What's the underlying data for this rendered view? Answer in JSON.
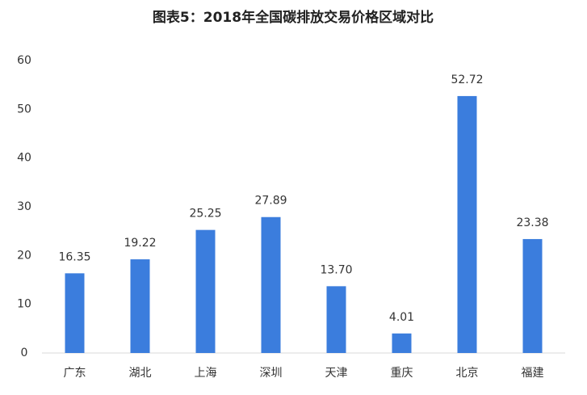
{
  "chart_data": {
    "type": "bar",
    "title": "图表5：2018年全国碳排放交易价格区域对比",
    "categories": [
      "广东",
      "湖北",
      "上海",
      "深圳",
      "天津",
      "重庆",
      "北京",
      "福建"
    ],
    "values": [
      16.35,
      19.22,
      25.25,
      27.89,
      13.7,
      4.01,
      52.72,
      23.38
    ],
    "value_labels": [
      "16.35",
      "19.22",
      "25.25",
      "27.89",
      "13.70",
      "4.01",
      "52.72",
      "23.38"
    ],
    "color": "#3b7ddd",
    "ylim": [
      0,
      60
    ],
    "yticks": [
      0,
      10,
      20,
      30,
      40,
      50,
      60
    ],
    "grid": false
  }
}
